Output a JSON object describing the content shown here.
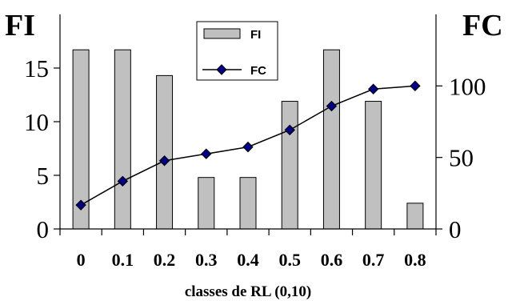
{
  "chart_data": {
    "type": "bar",
    "categories": [
      "0",
      "0.1",
      "0.2",
      "0.3",
      "0.4",
      "0.5",
      "0.6",
      "0.7",
      "0.8"
    ],
    "series": [
      {
        "name": "FI",
        "type": "bar",
        "axis": "left",
        "values": [
          16.7,
          16.7,
          14.3,
          4.8,
          4.8,
          11.9,
          16.7,
          11.9,
          2.4
        ],
        "color": "#C0C0C0"
      },
      {
        "name": "FC",
        "type": "line",
        "axis": "right",
        "values": [
          16.7,
          33.4,
          47.7,
          52.5,
          57.3,
          69.2,
          85.9,
          97.8,
          100
        ],
        "color": "#000080",
        "marker": "diamond"
      }
    ],
    "y_left": {
      "label": "FI",
      "ticks": [
        0,
        5,
        10,
        15
      ],
      "range": [
        0,
        20
      ]
    },
    "y_right": {
      "label": "FC",
      "ticks": [
        0,
        50,
        100
      ],
      "range": [
        0,
        150
      ]
    },
    "xlabel": "classes de RL (0,10)",
    "legend": {
      "position": "top-center",
      "entries": [
        "FI",
        "FC"
      ]
    },
    "grid": false
  }
}
